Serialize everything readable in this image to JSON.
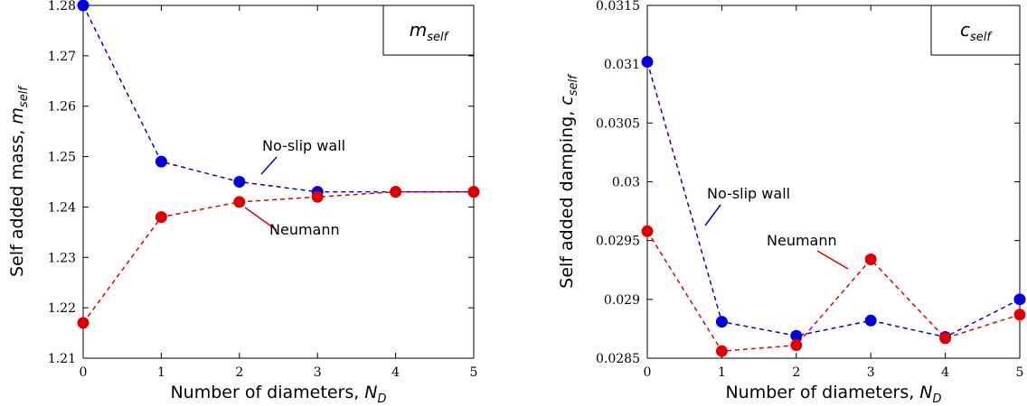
{
  "colors": {
    "no_slip": "#0000dd",
    "neumann": "#e00000"
  },
  "chart_data": [
    {
      "type": "line",
      "box_label": {
        "main": "m",
        "sub": "self"
      },
      "xlabel": {
        "text": "Number of diameters, ",
        "var": "N",
        "sub": "D"
      },
      "ylabel": {
        "text": "Self added mass, ",
        "var": "m",
        "sub": "self"
      },
      "xlim": [
        0,
        5
      ],
      "ylim": [
        1.21,
        1.28
      ],
      "x_ticks": [
        "0",
        "1",
        "2",
        "3",
        "4",
        "5"
      ],
      "y_ticks": [
        "1.21",
        "1.22",
        "1.23",
        "1.24",
        "1.25",
        "1.26",
        "1.27",
        "1.28"
      ],
      "x": [
        0,
        1,
        2,
        3,
        4,
        5
      ],
      "series": [
        {
          "name": "No-slip wall",
          "values": [
            1.28,
            1.249,
            1.245,
            1.243,
            1.243,
            1.243
          ]
        },
        {
          "name": "Neumann",
          "values": [
            1.217,
            1.238,
            1.241,
            1.242,
            1.243,
            1.243
          ]
        }
      ],
      "annotations": [
        {
          "text": "No-slip wall",
          "series": 0
        },
        {
          "text": "Neumann",
          "series": 1
        }
      ]
    },
    {
      "type": "line",
      "box_label": {
        "main": "c",
        "sub": "self"
      },
      "xlabel": {
        "text": "Number of diameters, ",
        "var": "N",
        "sub": "D"
      },
      "ylabel": {
        "text": "Self added damping, ",
        "var": "c",
        "sub": "self"
      },
      "xlim": [
        0,
        5
      ],
      "ylim": [
        0.0285,
        0.0315
      ],
      "x_ticks": [
        "0",
        "1",
        "2",
        "3",
        "4",
        "5"
      ],
      "y_ticks": [
        "0.0285",
        "0.029",
        "0.0295",
        "0.03",
        "0.0305",
        "0.031",
        "0.0315"
      ],
      "x": [
        0,
        1,
        2,
        3,
        4,
        5
      ],
      "series": [
        {
          "name": "No-slip wall",
          "values": [
            0.03102,
            0.02881,
            0.02869,
            0.02882,
            0.02868,
            0.029
          ]
        },
        {
          "name": "Neumann",
          "values": [
            0.02958,
            0.02856,
            0.02861,
            0.02934,
            0.02867,
            0.02887
          ]
        }
      ],
      "annotations": [
        {
          "text": "No-slip wall",
          "series": 0
        },
        {
          "text": "Neumann",
          "series": 1
        }
      ]
    }
  ]
}
